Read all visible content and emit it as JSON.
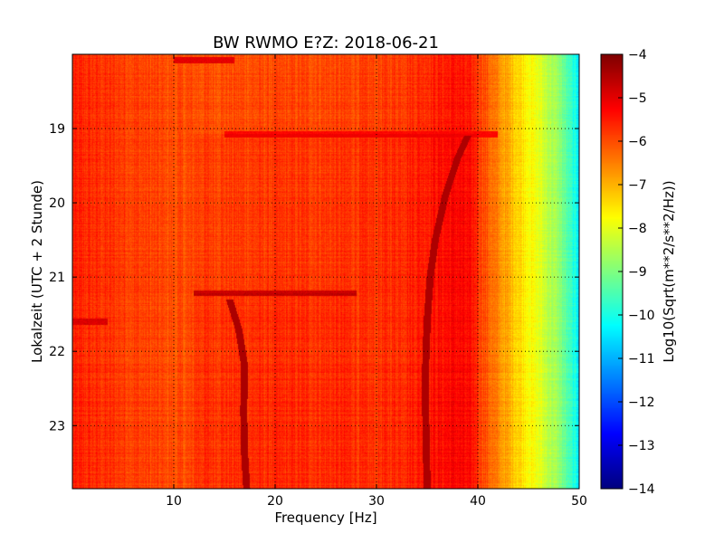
{
  "chart_data": {
    "type": "heatmap",
    "title": "BW RWMO E?Z: 2018-06-21",
    "xlabel": "Frequency [Hz]",
    "ylabel": "Lokalzeit (UTC + 2 Stunde)",
    "xlim": [
      0,
      50
    ],
    "ylim_hours": [
      18.0,
      23.85
    ],
    "y_inverted": true,
    "grid": true,
    "x_ticks": [
      10,
      20,
      30,
      40,
      50
    ],
    "x_tick_labels": [
      "10",
      "20",
      "30",
      "40",
      "50"
    ],
    "y_ticks": [
      19,
      20,
      21,
      22,
      23
    ],
    "y_tick_labels": [
      "19",
      "20",
      "21",
      "22",
      "23"
    ],
    "colorbar": {
      "label": "Log10(Sqrt(m**2/s**2/Hz))",
      "colormap": "jet",
      "vmin": -14,
      "vmax": -4,
      "ticks": [
        -4,
        -5,
        -6,
        -7,
        -8,
        -9,
        -10,
        -11,
        -12,
        -13,
        -14
      ],
      "tick_labels": [
        "−4",
        "−5",
        "−6",
        "−7",
        "−8",
        "−9",
        "−10",
        "−11",
        "−12",
        "−13",
        "−14"
      ]
    },
    "background_level_by_frequency": [
      {
        "freq": 0,
        "value": -5.6
      },
      {
        "freq": 10,
        "value": -6.0
      },
      {
        "freq": 30,
        "value": -5.9
      },
      {
        "freq": 38,
        "value": -5.4
      },
      {
        "freq": 40,
        "value": -5.7
      },
      {
        "freq": 42,
        "value": -6.6
      },
      {
        "freq": 44,
        "value": -7.3
      },
      {
        "freq": 46,
        "value": -8.0
      },
      {
        "freq": 48,
        "value": -8.8
      },
      {
        "freq": 50,
        "value": -10.4
      }
    ],
    "features": [
      {
        "name": "drifting line",
        "value": -4.6,
        "points": [
          [
            39.0,
            19.1
          ],
          [
            38.0,
            19.4
          ],
          [
            36.8,
            19.9
          ],
          [
            35.8,
            20.5
          ],
          [
            35.3,
            21.0
          ],
          [
            35.0,
            21.6
          ],
          [
            34.8,
            22.4
          ],
          [
            34.9,
            23.2
          ],
          [
            35.0,
            23.85
          ]
        ]
      },
      {
        "name": "curved line",
        "value": -4.7,
        "points": [
          [
            15.5,
            21.3
          ],
          [
            16.4,
            21.7
          ],
          [
            17.0,
            22.2
          ],
          [
            16.9,
            22.8
          ],
          [
            17.0,
            23.4
          ],
          [
            17.2,
            23.85
          ]
        ]
      },
      {
        "name": "band",
        "value": -4.9,
        "points": [
          [
            12.0,
            21.22
          ],
          [
            28.0,
            21.22
          ]
        ]
      },
      {
        "name": "band",
        "value": -4.9,
        "points": [
          [
            0.0,
            21.6
          ],
          [
            3.5,
            21.6
          ]
        ]
      },
      {
        "name": "band",
        "value": -5.0,
        "points": [
          [
            10.0,
            18.08
          ],
          [
            16.0,
            18.08
          ]
        ]
      },
      {
        "name": "step",
        "value": -5.3,
        "points": [
          [
            15.0,
            19.07
          ],
          [
            42.0,
            19.07
          ]
        ]
      }
    ]
  }
}
